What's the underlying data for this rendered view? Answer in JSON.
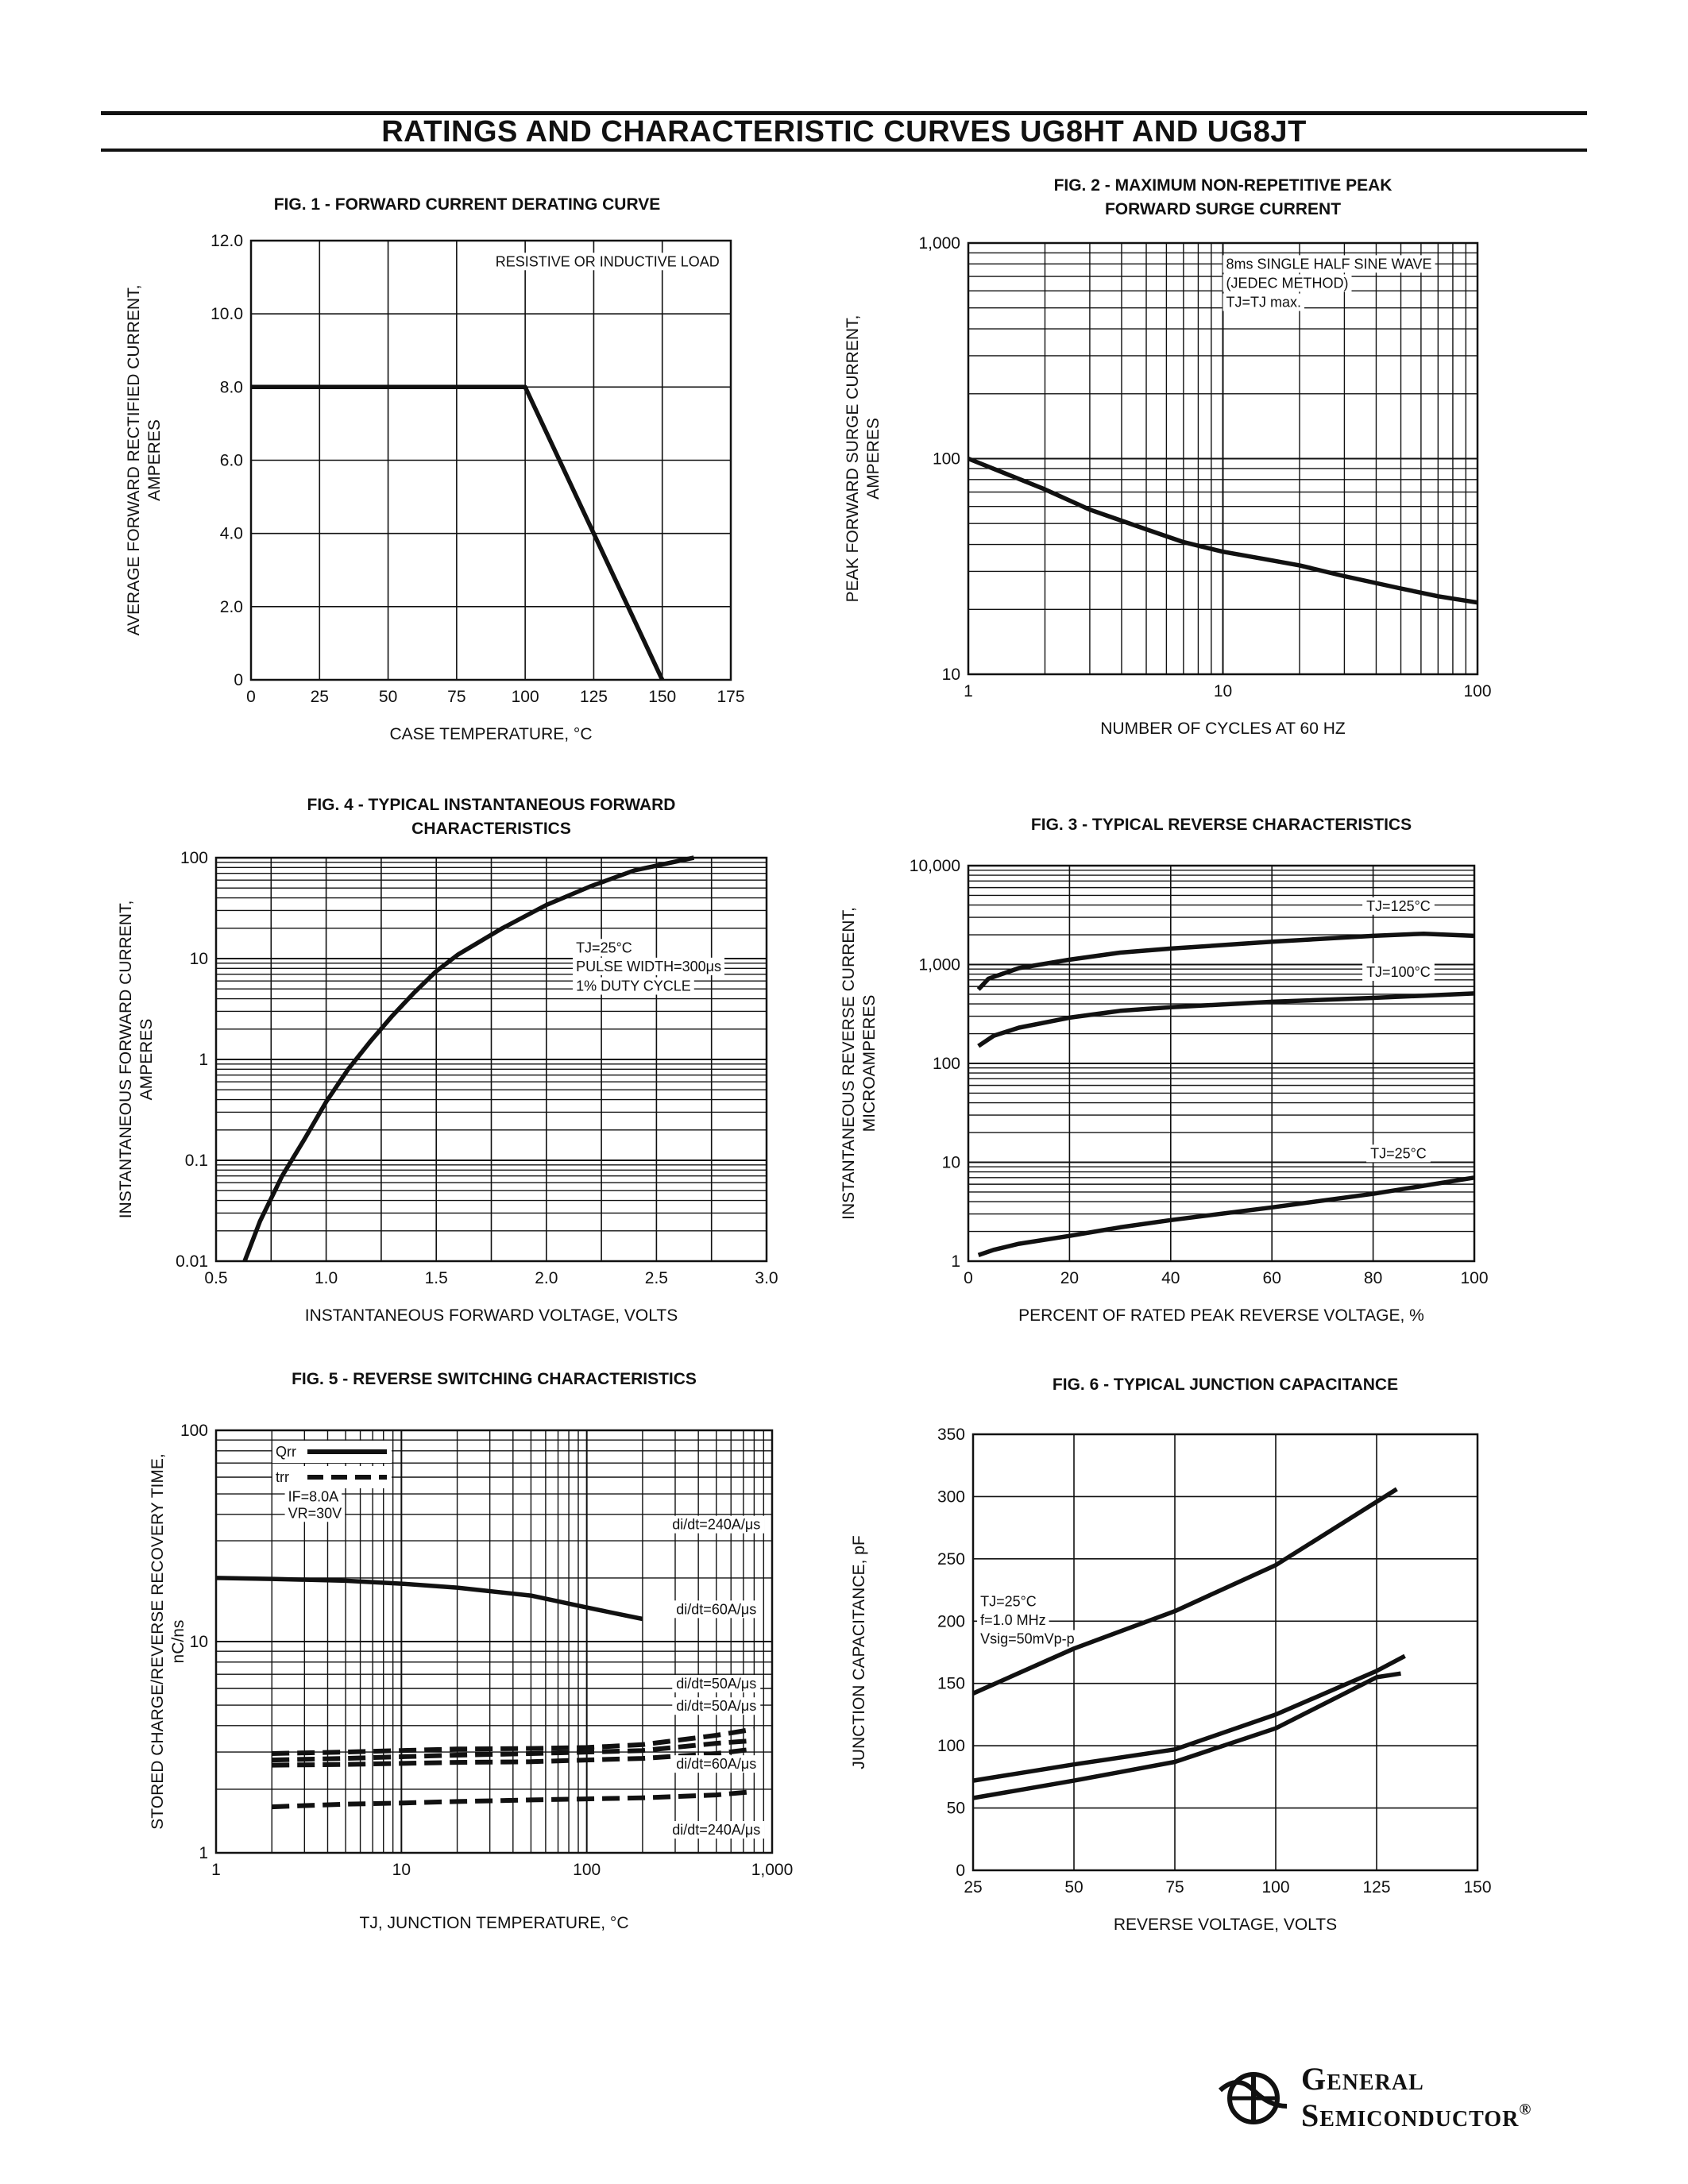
{
  "header": {
    "title": "RATINGS AND CHARACTERISTIC CURVES UG8HT AND UG8JT"
  },
  "logo": {
    "line1": "General",
    "line2": "Semiconductor",
    "mark": "®"
  },
  "chart_data": [
    {
      "id": "fig1",
      "type": "line",
      "title": [
        "FIG. 1 - FORWARD CURRENT DERATING CURVE"
      ],
      "xlabel": "CASE TEMPERATURE, °C",
      "ylabel": [
        "AVERAGE FORWARD RECTIFIED CURRENT,",
        "AMPERES"
      ],
      "xscale": "linear",
      "yscale": "linear",
      "xlim": [
        0,
        175
      ],
      "ylim": [
        0,
        12
      ],
      "xticks": [
        0,
        25,
        50,
        75,
        100,
        125,
        150,
        175
      ],
      "xtick_labels": [
        "0",
        "25",
        "50",
        "75",
        "100",
        "125",
        "150",
        "175"
      ],
      "yticks": [
        0,
        2,
        4,
        6,
        8,
        10,
        12
      ],
      "ytick_labels": [
        "0",
        "2.0",
        "4.0",
        "6.0",
        "8.0",
        "10.0",
        "12.0"
      ],
      "grid": "major",
      "annotations": [
        {
          "text": "RESISTIVE OR INDUCTIVE LOAD",
          "x": 88,
          "y": 11.3
        }
      ],
      "series": [
        {
          "style": "solid",
          "x": [
            0,
            100,
            150
          ],
          "y": [
            8,
            8,
            0
          ]
        }
      ]
    },
    {
      "id": "fig2",
      "type": "line",
      "title": [
        "FIG. 2 - MAXIMUM NON-REPETITIVE PEAK",
        "FORWARD SURGE CURRENT"
      ],
      "xlabel": "NUMBER OF CYCLES AT 60 HZ",
      "ylabel": [
        "PEAK FORWARD SURGE CURRENT,",
        "AMPERES"
      ],
      "xscale": "log",
      "yscale": "log",
      "xlim": [
        1,
        100
      ],
      "ylim": [
        10,
        1000
      ],
      "xticks": [
        1,
        10,
        100
      ],
      "xtick_labels": [
        "1",
        "10",
        "100"
      ],
      "yticks": [
        10,
        100,
        1000
      ],
      "ytick_labels": [
        "10",
        "100",
        "1,000"
      ],
      "grid": "log",
      "annotations": [
        {
          "text": "8ms SINGLE HALF SINE WAVE",
          "x": 10,
          "y": 760
        },
        {
          "text": "(JEDEC METHOD)",
          "x": 10,
          "y": 620
        },
        {
          "text": "TJ=TJ max.",
          "x": 10,
          "y": 505
        }
      ],
      "series": [
        {
          "style": "solid",
          "x": [
            1,
            2,
            3,
            5,
            7,
            10,
            15,
            20,
            30,
            50,
            70,
            100
          ],
          "y": [
            100,
            72,
            58,
            47,
            41,
            37,
            34,
            32,
            28.5,
            25,
            23,
            21.5
          ]
        }
      ]
    },
    {
      "id": "fig4",
      "type": "line",
      "title": [
        "FIG. 4 - TYPICAL INSTANTANEOUS FORWARD",
        "CHARACTERISTICS"
      ],
      "xlabel": "INSTANTANEOUS FORWARD VOLTAGE, VOLTS",
      "ylabel": [
        "INSTANTANEOUS FORWARD CURRENT,",
        "AMPERES"
      ],
      "xscale": "linear",
      "yscale": "log",
      "xlim": [
        0.5,
        3.0
      ],
      "ylim": [
        0.01,
        100
      ],
      "xticks": [
        0.5,
        1.0,
        1.5,
        2.0,
        2.5,
        3.0
      ],
      "xtick_labels": [
        "0.5",
        "1.0",
        "1.5",
        "2.0",
        "2.5",
        "3.0"
      ],
      "yticks": [
        0.01,
        0.1,
        1,
        10,
        100
      ],
      "ytick_labels": [
        "0.01",
        "0.1",
        "1",
        "10",
        "100"
      ],
      "grid": "log",
      "annotations": [
        {
          "text": "TJ=25°C",
          "x": 2.12,
          "y": 11.5
        },
        {
          "text": "PULSE WIDTH=300μs",
          "x": 2.12,
          "y": 7.5
        },
        {
          "text": "1% DUTY CYCLE",
          "x": 2.12,
          "y": 4.8
        }
      ],
      "series": [
        {
          "style": "solid",
          "x": [
            0.63,
            0.7,
            0.8,
            0.9,
            1.0,
            1.1,
            1.2,
            1.3,
            1.4,
            1.5,
            1.6,
            1.8,
            2.0,
            2.2,
            2.4,
            2.67
          ],
          "y": [
            0.01,
            0.025,
            0.07,
            0.16,
            0.38,
            0.8,
            1.5,
            2.7,
            4.6,
            7.5,
            11,
            20,
            34,
            52,
            75,
            100
          ]
        }
      ]
    },
    {
      "id": "fig3",
      "type": "line",
      "title": [
        "FIG. 3 - TYPICAL REVERSE CHARACTERISTICS"
      ],
      "xlabel": "PERCENT OF RATED PEAK REVERSE VOLTAGE, %",
      "ylabel": [
        "INSTANTANEOUS REVERSE CURRENT,",
        "MICROAMPERES"
      ],
      "xscale": "linear",
      "yscale": "log",
      "xlim": [
        0,
        100
      ],
      "ylim": [
        1,
        10000
      ],
      "xticks": [
        0,
        20,
        40,
        60,
        80,
        100
      ],
      "xtick_labels": [
        "0",
        "20",
        "40",
        "60",
        "80",
        "100"
      ],
      "yticks": [
        1,
        10,
        100,
        1000,
        10000
      ],
      "ytick_labels": [
        "1",
        "10",
        "100",
        "1,000",
        "10,000"
      ],
      "grid": "log",
      "series": [
        {
          "name": "TJ=125°C",
          "style": "solid",
          "label_at": [
            85,
            3500
          ],
          "x": [
            2,
            4,
            10,
            20,
            30,
            40,
            60,
            80,
            90,
            100
          ],
          "y": [
            560,
            720,
            920,
            1120,
            1320,
            1450,
            1700,
            1950,
            2050,
            1950
          ]
        },
        {
          "name": "TJ=100°C",
          "style": "solid",
          "label_at": [
            85,
            750
          ],
          "x": [
            2,
            5,
            10,
            20,
            30,
            40,
            60,
            80,
            100
          ],
          "y": [
            150,
            190,
            230,
            290,
            340,
            370,
            420,
            460,
            510
          ]
        },
        {
          "name": "TJ=25°C",
          "style": "solid",
          "label_at": [
            85,
            11
          ],
          "x": [
            2,
            5,
            10,
            20,
            30,
            40,
            60,
            80,
            100
          ],
          "y": [
            1.15,
            1.3,
            1.5,
            1.8,
            2.2,
            2.6,
            3.5,
            4.8,
            7
          ]
        }
      ]
    },
    {
      "id": "fig5",
      "type": "line",
      "title": [
        "FIG. 5 - REVERSE SWITCHING CHARACTERISTICS"
      ],
      "xlabel": "TJ, JUNCTION TEMPERATURE, °C",
      "ylabel": [
        "STORED CHARGE/REVERSE RECOVERY TIME,",
        "nC/ns"
      ],
      "xscale": "log",
      "yscale": "log",
      "xlim": [
        1,
        1000
      ],
      "ylim": [
        1,
        100
      ],
      "xticks": [
        1,
        10,
        100,
        1000
      ],
      "xtick_labels": [
        "1",
        "10",
        "100",
        "1,000"
      ],
      "yticks": [
        1,
        10,
        100
      ],
      "ytick_labels": [
        "1",
        "10",
        "100"
      ],
      "grid": "log",
      "legend": [
        {
          "label": "Qrr",
          "style": "solid"
        },
        {
          "label": "trr",
          "style": "dashed"
        }
      ],
      "annotations": [
        {
          "text": "IF=8.0A",
          "x": 2.35,
          "y": 46
        },
        {
          "text": "VR=30V",
          "x": 2.35,
          "y": 38.5
        }
      ],
      "series": [
        {
          "name": "di/dt=240A/μs",
          "style": "solid",
          "label_at": [
            500,
            34
          ],
          "x": [
            1,
            2,
            5,
            10,
            20,
            50,
            100,
            200
          ],
          "y": [
            20,
            19.8,
            19.4,
            18.8,
            18,
            16.5,
            14.5,
            12.8
          ]
        },
        {
          "name": "di/dt=60A/μs",
          "style": "solid",
          "label_at": [
            500,
            13.5
          ],
          "x": [],
          "y": []
        },
        {
          "name": "di/dt=50A/μs",
          "style": "dashed",
          "label_at": [
            500,
            6
          ],
          "x": [
            2,
            5,
            10,
            20,
            50,
            100,
            200,
            500,
            800
          ],
          "y": [
            2.95,
            3.0,
            3.05,
            3.1,
            3.12,
            3.15,
            3.25,
            3.6,
            3.85
          ]
        },
        {
          "name": "di/dt=50A/μs",
          "style": "dashed",
          "label_at": [
            500,
            4.7
          ],
          "x": [
            2,
            5,
            10,
            20,
            50,
            100,
            200,
            500,
            800
          ],
          "y": [
            2.75,
            2.8,
            2.85,
            2.9,
            2.95,
            3.0,
            3.05,
            3.3,
            3.4
          ]
        },
        {
          "name": "di/dt=60A/μs",
          "style": "dashed",
          "label_at": [
            500,
            2.5
          ],
          "x": [
            2,
            5,
            10,
            20,
            50,
            100,
            200,
            500,
            800
          ],
          "y": [
            2.6,
            2.62,
            2.65,
            2.68,
            2.7,
            2.75,
            2.8,
            2.95,
            3.1
          ]
        },
        {
          "name": "di/dt=240A/μs",
          "style": "dashed",
          "label_at": [
            500,
            1.22
          ],
          "x": [
            2,
            5,
            10,
            20,
            50,
            100,
            200,
            500,
            800
          ],
          "y": [
            1.65,
            1.7,
            1.72,
            1.75,
            1.78,
            1.8,
            1.82,
            1.88,
            1.95
          ]
        }
      ]
    },
    {
      "id": "fig6",
      "type": "line",
      "title": [
        "FIG. 6 - TYPICAL JUNCTION CAPACITANCE"
      ],
      "xlabel": "REVERSE VOLTAGE, VOLTS",
      "ylabel": [
        "JUNCTION CAPACITANCE, pF"
      ],
      "xscale": "linear",
      "yscale": "linear",
      "xlim": [
        25,
        150
      ],
      "ylim": [
        0,
        350
      ],
      "xticks": [
        25,
        50,
        75,
        100,
        125,
        150
      ],
      "xtick_labels": [
        "25",
        "50",
        "75",
        "100",
        "125",
        "150"
      ],
      "yticks": [
        0,
        50,
        100,
        150,
        200,
        250,
        300,
        350
      ],
      "ytick_labels": [
        "0",
        "50",
        "100",
        "150",
        "200",
        "250",
        "300",
        "350"
      ],
      "grid": "major",
      "annotations": [
        {
          "text": "TJ=25°C",
          "x": 26,
          "y": 212
        },
        {
          "text": "f=1.0 MHz",
          "x": 26,
          "y": 197
        },
        {
          "text": "Vsig=50mVp-p",
          "x": 26,
          "y": 182
        }
      ],
      "series": [
        {
          "style": "solid",
          "x": [
            25,
            50,
            75,
            100,
            130
          ],
          "y": [
            142,
            178,
            208,
            245,
            306
          ]
        },
        {
          "style": "solid",
          "x": [
            25,
            50,
            75,
            100,
            125,
            132
          ],
          "y": [
            72,
            85,
            97,
            125,
            160,
            172
          ]
        },
        {
          "style": "solid",
          "x": [
            25,
            50,
            75,
            100,
            125,
            131
          ],
          "y": [
            58,
            72,
            87,
            114,
            155,
            158
          ]
        }
      ]
    }
  ]
}
